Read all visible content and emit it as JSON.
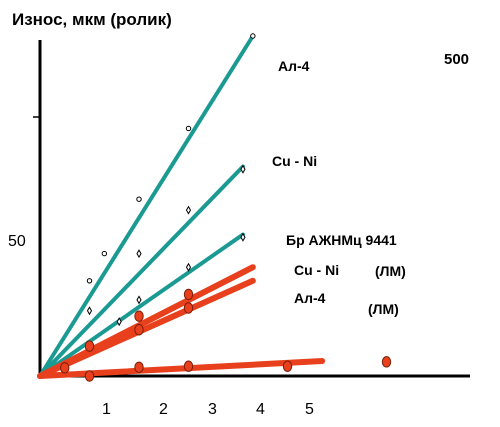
{
  "chart_data": {
    "type": "line",
    "ylabel": "Износ, мкм (ролик)",
    "corner_label": "500",
    "x_ticks": [
      "1",
      "2",
      "3",
      "4",
      "5"
    ],
    "y_ticks": [
      "50"
    ],
    "xlim": [
      0,
      5.7
    ],
    "ylim": [
      0,
      128
    ],
    "series": [
      {
        "name": "Ал-4",
        "color": "#1a9a92",
        "marker": "circle",
        "line_x": [
          0,
          4.3
        ],
        "line_y": [
          0,
          125
        ],
        "points": [
          [
            1,
            35
          ],
          [
            1.3,
            45
          ],
          [
            2,
            65
          ],
          [
            3,
            91
          ],
          [
            4.3,
            125
          ]
        ]
      },
      {
        "name": "Cu - Ni",
        "color": "#1a9a92",
        "marker": "diamond",
        "line_x": [
          0,
          4.1
        ],
        "line_y": [
          0,
          77
        ],
        "points": [
          [
            1,
            24
          ],
          [
            2,
            45
          ],
          [
            3,
            61
          ],
          [
            4.1,
            76
          ]
        ]
      },
      {
        "name": "Бр АЖНМц 9441",
        "color": "#1a9a92",
        "marker": "diamond",
        "line_x": [
          0,
          4.1
        ],
        "line_y": [
          0,
          52
        ],
        "points": [
          [
            1.6,
            20
          ],
          [
            2,
            28
          ],
          [
            3,
            40
          ],
          [
            4.1,
            51
          ]
        ]
      },
      {
        "name": "Cu - Ni",
        "tag": "(ЛМ)",
        "color": "#e8401c",
        "marker": "red-dot",
        "line_x": [
          0,
          4.3
        ],
        "line_y": [
          0,
          40
        ],
        "points": [
          [
            0.5,
            3
          ],
          [
            1,
            11
          ],
          [
            2,
            22
          ],
          [
            3,
            30
          ]
        ]
      },
      {
        "name": "Ал-4",
        "tag": "(ЛМ)",
        "color": "#e8401c",
        "marker": "red-dot",
        "line_x": [
          0,
          4.3
        ],
        "line_y": [
          0,
          35
        ],
        "points": [
          [
            2,
            17
          ],
          [
            3,
            25
          ]
        ]
      },
      {
        "name": "",
        "color": "#e8401c",
        "marker": "red-dot",
        "line_x": [
          0,
          5.7
        ],
        "line_y": [
          0,
          5.5
        ],
        "points": [
          [
            1,
            0
          ],
          [
            2,
            3.2
          ],
          [
            3,
            3.6
          ],
          [
            5,
            3.6
          ],
          [
            7,
            5.2
          ]
        ]
      }
    ]
  }
}
